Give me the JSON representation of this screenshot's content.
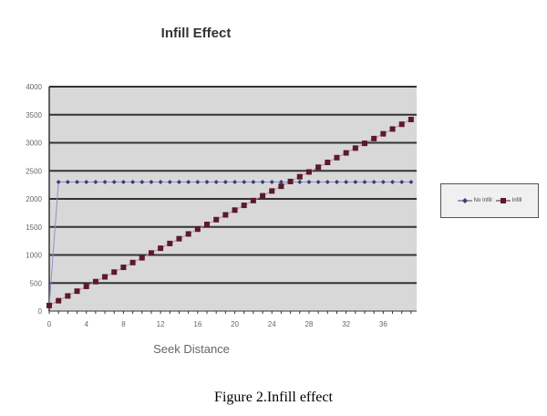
{
  "chart_data": {
    "type": "line",
    "title": "Infill Effect",
    "xlabel": "Seek Distance",
    "ylabel": "",
    "xlim": [
      0,
      39
    ],
    "ylim": [
      0,
      4000
    ],
    "yticks": [
      0,
      500,
      1000,
      1500,
      2000,
      2500,
      3000,
      3500,
      4000
    ],
    "xticks": [
      0,
      4,
      8,
      12,
      16,
      20,
      24,
      28,
      32,
      36
    ],
    "grid": true,
    "legend_position": "right",
    "x": [
      0,
      1,
      2,
      3,
      4,
      5,
      6,
      7,
      8,
      9,
      10,
      11,
      12,
      13,
      14,
      15,
      16,
      17,
      18,
      19,
      20,
      21,
      22,
      23,
      24,
      25,
      26,
      27,
      28,
      29,
      30,
      31,
      32,
      33,
      34,
      35,
      36,
      37,
      38,
      39
    ],
    "series": [
      {
        "name": "No Infill",
        "color": "#3a3f7a",
        "marker": "diamond",
        "values": [
          100,
          2300,
          2300,
          2300,
          2300,
          2300,
          2300,
          2300,
          2300,
          2300,
          2300,
          2300,
          2300,
          2300,
          2300,
          2300,
          2300,
          2300,
          2300,
          2300,
          2300,
          2300,
          2300,
          2300,
          2300,
          2300,
          2300,
          2300,
          2300,
          2300,
          2300,
          2300,
          2300,
          2300,
          2300,
          2300,
          2300,
          2300,
          2300,
          2300
        ]
      },
      {
        "name": "Infill",
        "color": "#5a1a2a",
        "marker": "square",
        "values": [
          100,
          185,
          270,
          355,
          440,
          525,
          610,
          695,
          780,
          865,
          950,
          1035,
          1120,
          1205,
          1290,
          1375,
          1460,
          1545,
          1630,
          1715,
          1800,
          1885,
          1970,
          2055,
          2140,
          2225,
          2310,
          2395,
          2480,
          2565,
          2650,
          2735,
          2820,
          2905,
          2990,
          3075,
          3160,
          3245,
          3330,
          3415
        ]
      }
    ]
  },
  "caption": "Figure 2.Infill effect"
}
